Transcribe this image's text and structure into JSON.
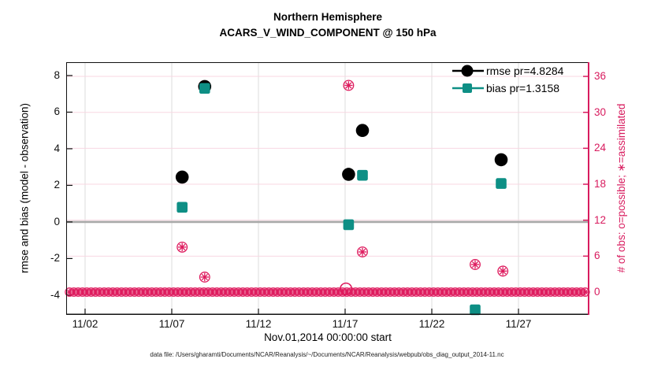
{
  "figure": {
    "title_line1": "Northern Hemisphere",
    "title_line2": "ACARS_V_WIND_COMPONENT @ 150 hPa",
    "xlabel": "Nov.01,2014 00:00:00 start",
    "ylabel_left": "rmse and bias (model - observation)",
    "ylabel_right": "# of obs: o=possible; ∗=assimilated",
    "caption": "data file: /Users/gharamti/Documents/NCAR/Reanalysis/~/Documents/NCAR/Reanalysis/webpub/obs_diag_output_2014-11.nc"
  },
  "legend": {
    "items": [
      {
        "label": "rmse pr=4.8284",
        "marker": "filled-circle",
        "color": "#000000"
      },
      {
        "label": "bias pr=1.3158",
        "marker": "filled-square",
        "color": "#0e8f85"
      }
    ]
  },
  "colors": {
    "rmse": "#000000",
    "bias": "#0e8f85",
    "obs": "#de1b5e",
    "right_axis": "#d81b5e",
    "zero_line": "#a9a9a9",
    "grid_vertical": "#dcdcdc",
    "grid_horizontal": "#f8d7e2",
    "spine": "#111111"
  },
  "chart_data": {
    "type": "scatter",
    "title": [
      "Northern Hemisphere",
      "ACARS_V_WIND_COMPONENT @ 150 hPa"
    ],
    "xlabel": "Nov.01,2014 00:00:00 start",
    "ylabel_left": "rmse and bias (model - observation)",
    "ylabel_right": "# of obs: o=possible; ∗=assimilated",
    "x_ticks": [
      {
        "day": 2,
        "label": "11/02"
      },
      {
        "day": 7,
        "label": "11/07"
      },
      {
        "day": 12,
        "label": "11/12"
      },
      {
        "day": 17,
        "label": "11/17"
      },
      {
        "day": 22,
        "label": "11/22"
      },
      {
        "day": 27,
        "label": "11/27"
      }
    ],
    "x_range_days": [
      0.91,
      31.09
    ],
    "y_left": {
      "ticks": [
        8,
        6,
        4,
        2,
        0,
        -2,
        -4
      ],
      "range": [
        -5.08,
        8.73
      ],
      "grid": false
    },
    "y_right": {
      "ticks": [
        36,
        30,
        24,
        18,
        12,
        6,
        0
      ],
      "range": [
        -3.81,
        38.37
      ],
      "grid": true
    },
    "zero_line": {
      "axis": "left",
      "value": 0
    },
    "legend_position": "top-right",
    "series": [
      {
        "name": "rmse pr=4.8284",
        "axis": "left",
        "marker": "filled-circle",
        "color": "#000000",
        "points": [
          [
            7.6,
            2.45
          ],
          [
            8.9,
            7.4
          ],
          [
            17.2,
            2.6
          ],
          [
            18.0,
            5.0
          ],
          [
            26.0,
            3.4
          ]
        ]
      },
      {
        "name": "bias pr=1.3158",
        "axis": "left",
        "marker": "filled-square",
        "color": "#0e8f85",
        "points": [
          [
            7.6,
            0.8
          ],
          [
            8.9,
            7.3
          ],
          [
            17.2,
            -0.15
          ],
          [
            18.0,
            2.55
          ],
          [
            24.5,
            -4.8
          ],
          [
            26.0,
            2.1
          ]
        ]
      },
      {
        "name": "# of obs assimilated",
        "axis": "right",
        "marker": "circled-asterisk",
        "color": "#de1b5e",
        "points": [
          [
            7.6,
            7.5
          ],
          [
            8.9,
            2.5
          ],
          [
            17.2,
            34.5
          ],
          [
            18.0,
            6.7
          ],
          [
            24.5,
            4.6
          ],
          [
            26.1,
            3.5
          ]
        ]
      },
      {
        "name": "# of obs possible only",
        "axis": "right",
        "marker": "open-circle",
        "color": "#de1b5e",
        "points": [
          [
            17.05,
            0.55
          ]
        ]
      }
    ],
    "obs_zero_band": {
      "axis": "right",
      "value": 0,
      "start_day": 1.1,
      "end_day": 31.0,
      "step_days": 0.25,
      "marker": "circled-asterisk",
      "color": "#de1b5e"
    }
  }
}
